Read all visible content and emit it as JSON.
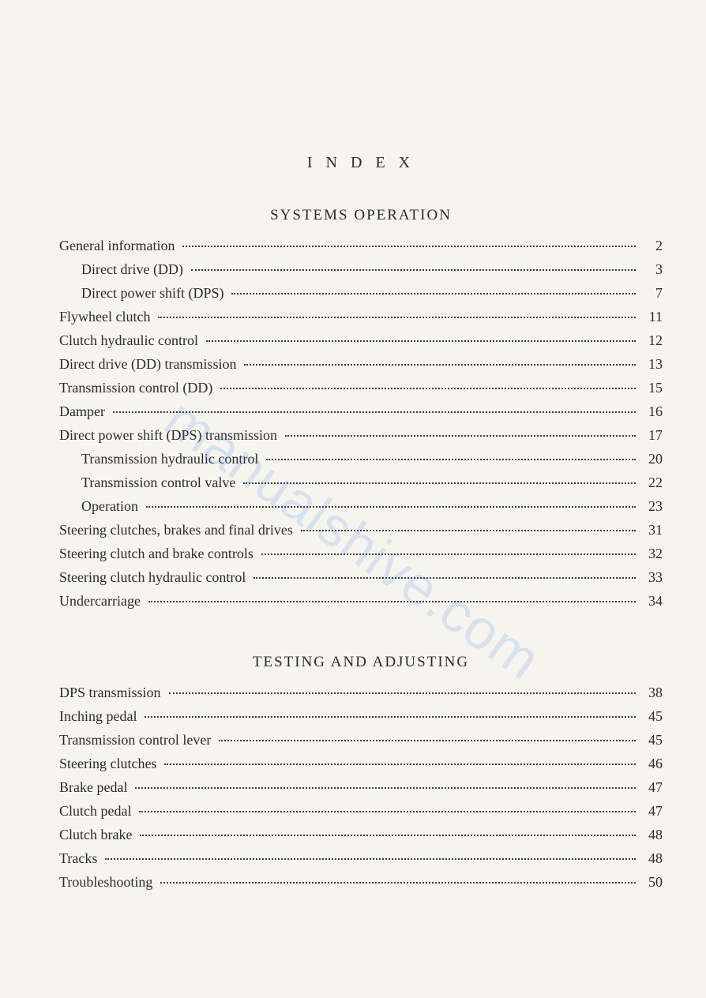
{
  "title": "I N D E X",
  "watermark": "manualshive.com",
  "sections": [
    {
      "heading": "SYSTEMS  OPERATION",
      "entries": [
        {
          "label": "General information",
          "page": "2",
          "indent": 0
        },
        {
          "label": "Direct drive (DD)",
          "page": "3",
          "indent": 1
        },
        {
          "label": "Direct power shift (DPS)",
          "page": "7",
          "indent": 1
        },
        {
          "label": "Flywheel clutch",
          "page": "11",
          "indent": 0
        },
        {
          "label": "Clutch hydraulic control",
          "page": "12",
          "indent": 0
        },
        {
          "label": "Direct drive (DD) transmission",
          "page": "13",
          "indent": 0
        },
        {
          "label": "Transmission control (DD)",
          "page": "15",
          "indent": 0
        },
        {
          "label": "Damper",
          "page": "16",
          "indent": 0
        },
        {
          "label": "Direct power shift (DPS) transmission",
          "page": "17",
          "indent": 0
        },
        {
          "label": "Transmission hydraulic control",
          "page": "20",
          "indent": 1
        },
        {
          "label": "Transmission control valve",
          "page": "22",
          "indent": 1
        },
        {
          "label": "Operation",
          "page": "23",
          "indent": 1
        },
        {
          "label": "Steering clutches, brakes and final drives",
          "page": "31",
          "indent": 0
        },
        {
          "label": "Steering clutch and brake controls",
          "page": "32",
          "indent": 0
        },
        {
          "label": "Steering clutch hydraulic control",
          "page": "33",
          "indent": 0
        },
        {
          "label": "Undercarriage",
          "page": "34",
          "indent": 0
        }
      ]
    },
    {
      "heading": "TESTING  AND  ADJUSTING",
      "entries": [
        {
          "label": "DPS transmission",
          "page": "38",
          "indent": 0
        },
        {
          "label": "Inching pedal",
          "page": "45",
          "indent": 0
        },
        {
          "label": "Transmission control lever",
          "page": "45",
          "indent": 0
        },
        {
          "label": "Steering clutches",
          "page": "46",
          "indent": 0
        },
        {
          "label": "Brake pedal",
          "page": "47",
          "indent": 0
        },
        {
          "label": "Clutch pedal",
          "page": "47",
          "indent": 0
        },
        {
          "label": "Clutch brake",
          "page": "48",
          "indent": 0
        },
        {
          "label": "Tracks",
          "page": "48",
          "indent": 0
        },
        {
          "label": "Troubleshooting",
          "page": "50",
          "indent": 0
        }
      ]
    }
  ]
}
